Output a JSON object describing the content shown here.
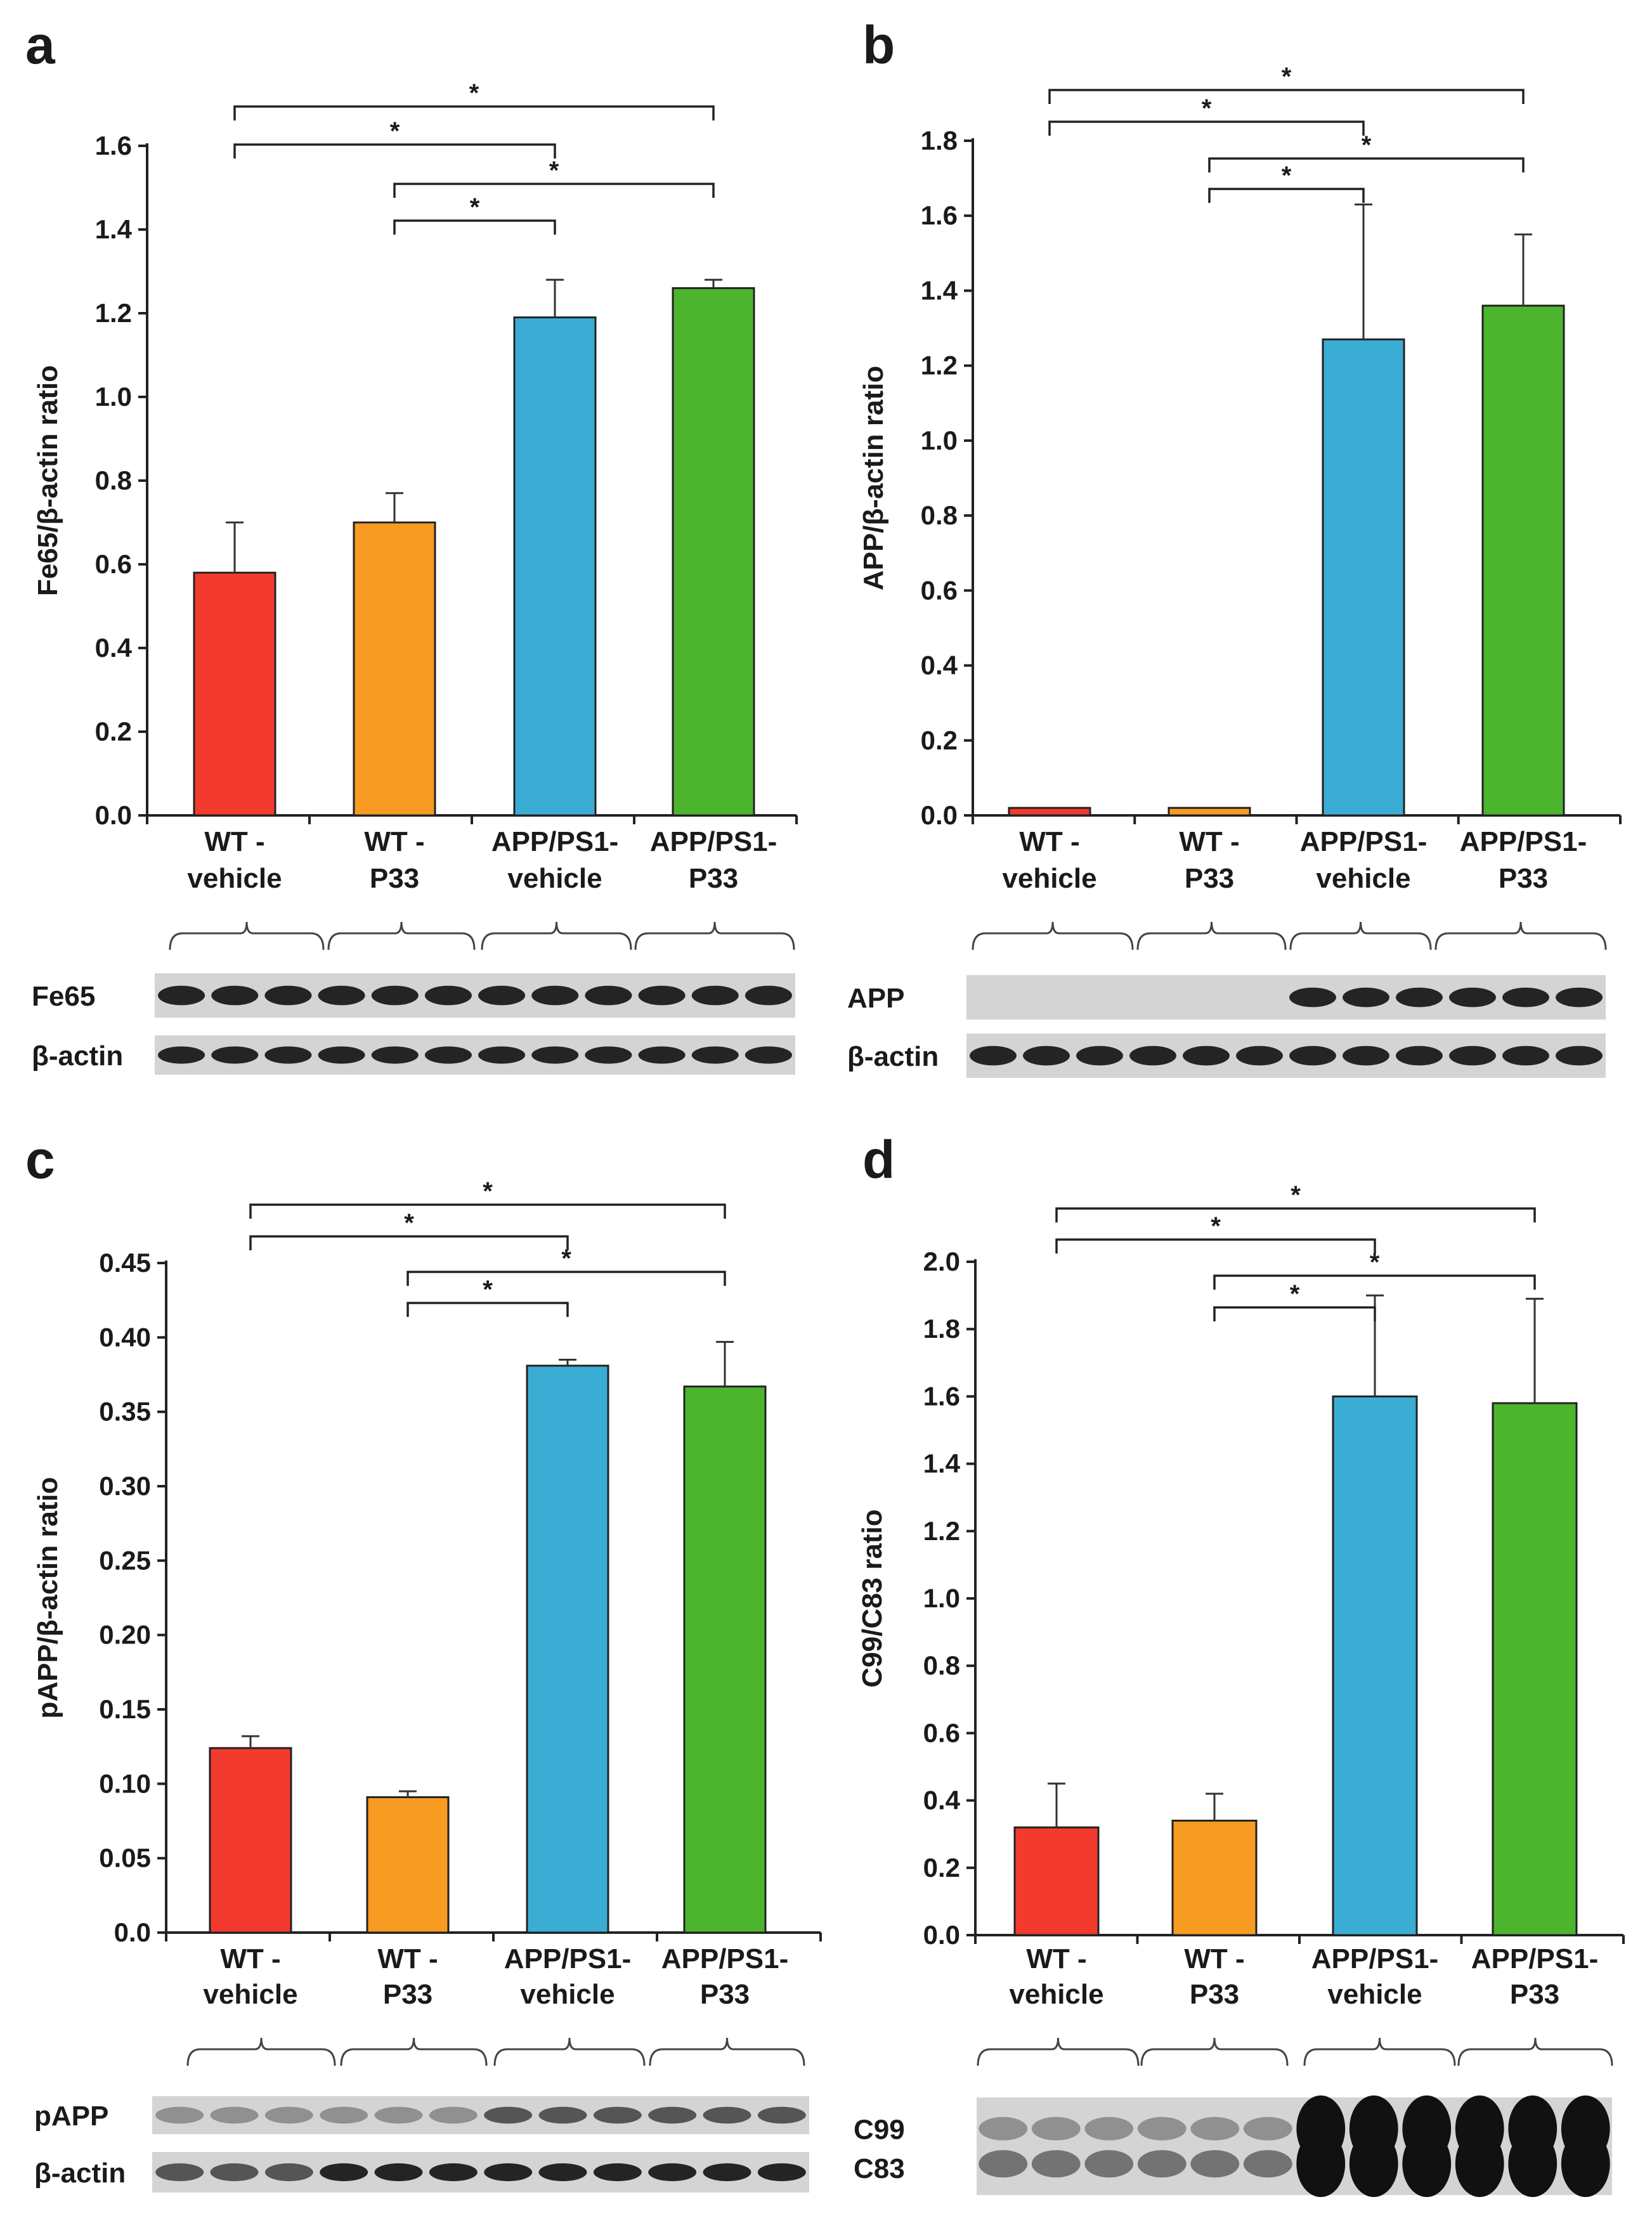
{
  "colors": {
    "wt_vehicle": "#f23a2e",
    "wt_p33": "#f79b22",
    "app_vehicle": "#3badd5",
    "app_p33": "#4cb52d"
  },
  "chart_data": [
    {
      "panel": "a",
      "type": "bar",
      "ylabel": "Fe65/β-actin ratio",
      "categories": [
        [
          "WT -",
          "vehicle"
        ],
        [
          "WT -",
          "P33"
        ],
        [
          "APP/PS1-",
          "vehicle"
        ],
        [
          "APP/PS1-",
          "P33"
        ]
      ],
      "values": [
        0.58,
        0.7,
        1.19,
        1.26
      ],
      "errors": [
        0.12,
        0.07,
        0.09,
        0.02
      ],
      "ylim": [
        0,
        1.6
      ],
      "yticks": [
        "0.0",
        "0.2",
        "0.4",
        "0.6",
        "0.8",
        "1.0",
        "1.2",
        "1.4",
        "1.6"
      ],
      "significance": [
        {
          "from": 0,
          "to": 3,
          "label": "*"
        },
        {
          "from": 0,
          "to": 2,
          "label": "*"
        },
        {
          "from": 1,
          "to": 3,
          "label": "*"
        },
        {
          "from": 1,
          "to": 2,
          "label": "*"
        }
      ],
      "blots": [
        {
          "label": "Fe65",
          "intensity": [
            "strong",
            "strong",
            "strong",
            "strong"
          ]
        },
        {
          "label": "β-actin",
          "intensity": [
            "strong",
            "strong",
            "strong",
            "strong"
          ]
        }
      ]
    },
    {
      "panel": "b",
      "type": "bar",
      "ylabel": "APP/β-actin ratio",
      "categories": [
        [
          "WT -",
          "vehicle"
        ],
        [
          "WT -",
          "P33"
        ],
        [
          "APP/PS1-",
          "vehicle"
        ],
        [
          "APP/PS1-",
          "P33"
        ]
      ],
      "values": [
        0.02,
        0.02,
        1.27,
        1.36
      ],
      "errors": [
        0,
        0,
        0.36,
        0.19
      ],
      "ylim": [
        0,
        1.8
      ],
      "yticks": [
        "0.0",
        "0.2",
        "0.4",
        "0.6",
        "0.8",
        "1.0",
        "1.2",
        "1.4",
        "1.6",
        "1.8"
      ],
      "significance": [
        {
          "from": 0,
          "to": 3,
          "label": "*"
        },
        {
          "from": 0,
          "to": 2,
          "label": "*"
        },
        {
          "from": 1,
          "to": 3,
          "label": "*"
        },
        {
          "from": 1,
          "to": 2,
          "label": "*"
        }
      ],
      "blots": [
        {
          "label": "APP",
          "intensity": [
            "none",
            "none",
            "strong",
            "strong"
          ]
        },
        {
          "label": "β-actin",
          "intensity": [
            "strong",
            "strong",
            "strong",
            "strong"
          ]
        }
      ]
    },
    {
      "panel": "c",
      "type": "bar",
      "ylabel": "pAPP/β-actin ratio",
      "categories": [
        [
          "WT -",
          "vehicle"
        ],
        [
          "WT -",
          "P33"
        ],
        [
          "APP/PS1-",
          "vehicle"
        ],
        [
          "APP/PS1-",
          "P33"
        ]
      ],
      "values": [
        0.124,
        0.091,
        0.381,
        0.367
      ],
      "errors": [
        0.008,
        0.004,
        0.004,
        0.03
      ],
      "ylim": [
        0,
        0.45
      ],
      "yticks": [
        "0.0",
        "0.05",
        "0.10",
        "0.15",
        "0.20",
        "0.25",
        "0.30",
        "0.35",
        "0.40",
        "0.45"
      ],
      "significance": [
        {
          "from": 0,
          "to": 3,
          "label": "*"
        },
        {
          "from": 0,
          "to": 2,
          "label": "*"
        },
        {
          "from": 1,
          "to": 3,
          "label": "*"
        },
        {
          "from": 1,
          "to": 2,
          "label": "*"
        }
      ],
      "blots": [
        {
          "label": "pAPP",
          "intensity": [
            "faint",
            "faint",
            "medium",
            "medium"
          ]
        },
        {
          "label": "β-actin",
          "intensity": [
            "medium",
            "strong",
            "strong",
            "strong"
          ]
        }
      ]
    },
    {
      "panel": "d",
      "type": "bar",
      "ylabel": "C99/C83 ratio",
      "categories": [
        [
          "WT -",
          "vehicle"
        ],
        [
          "WT -",
          "P33"
        ],
        [
          "APP/PS1-",
          "vehicle"
        ],
        [
          "APP/PS1-",
          "P33"
        ]
      ],
      "values": [
        0.32,
        0.34,
        1.6,
        1.58
      ],
      "errors": [
        0.13,
        0.08,
        0.3,
        0.31
      ],
      "ylim": [
        0,
        2.0
      ],
      "yticks": [
        "0.0",
        "0.2",
        "0.4",
        "0.6",
        "0.8",
        "1.0",
        "1.2",
        "1.4",
        "1.6",
        "1.8",
        "2.0"
      ],
      "significance": [
        {
          "from": 0,
          "to": 3,
          "label": "*"
        },
        {
          "from": 0,
          "to": 2,
          "label": "*"
        },
        {
          "from": 1,
          "to": 3,
          "label": "*"
        },
        {
          "from": 1,
          "to": 2,
          "label": "*"
        }
      ],
      "blots": [
        {
          "label": "C99 C83",
          "labels": [
            "C99",
            "C83"
          ],
          "intensity": [
            "faint",
            "faint",
            "saturated",
            "saturated"
          ],
          "double_band": true
        }
      ]
    }
  ]
}
